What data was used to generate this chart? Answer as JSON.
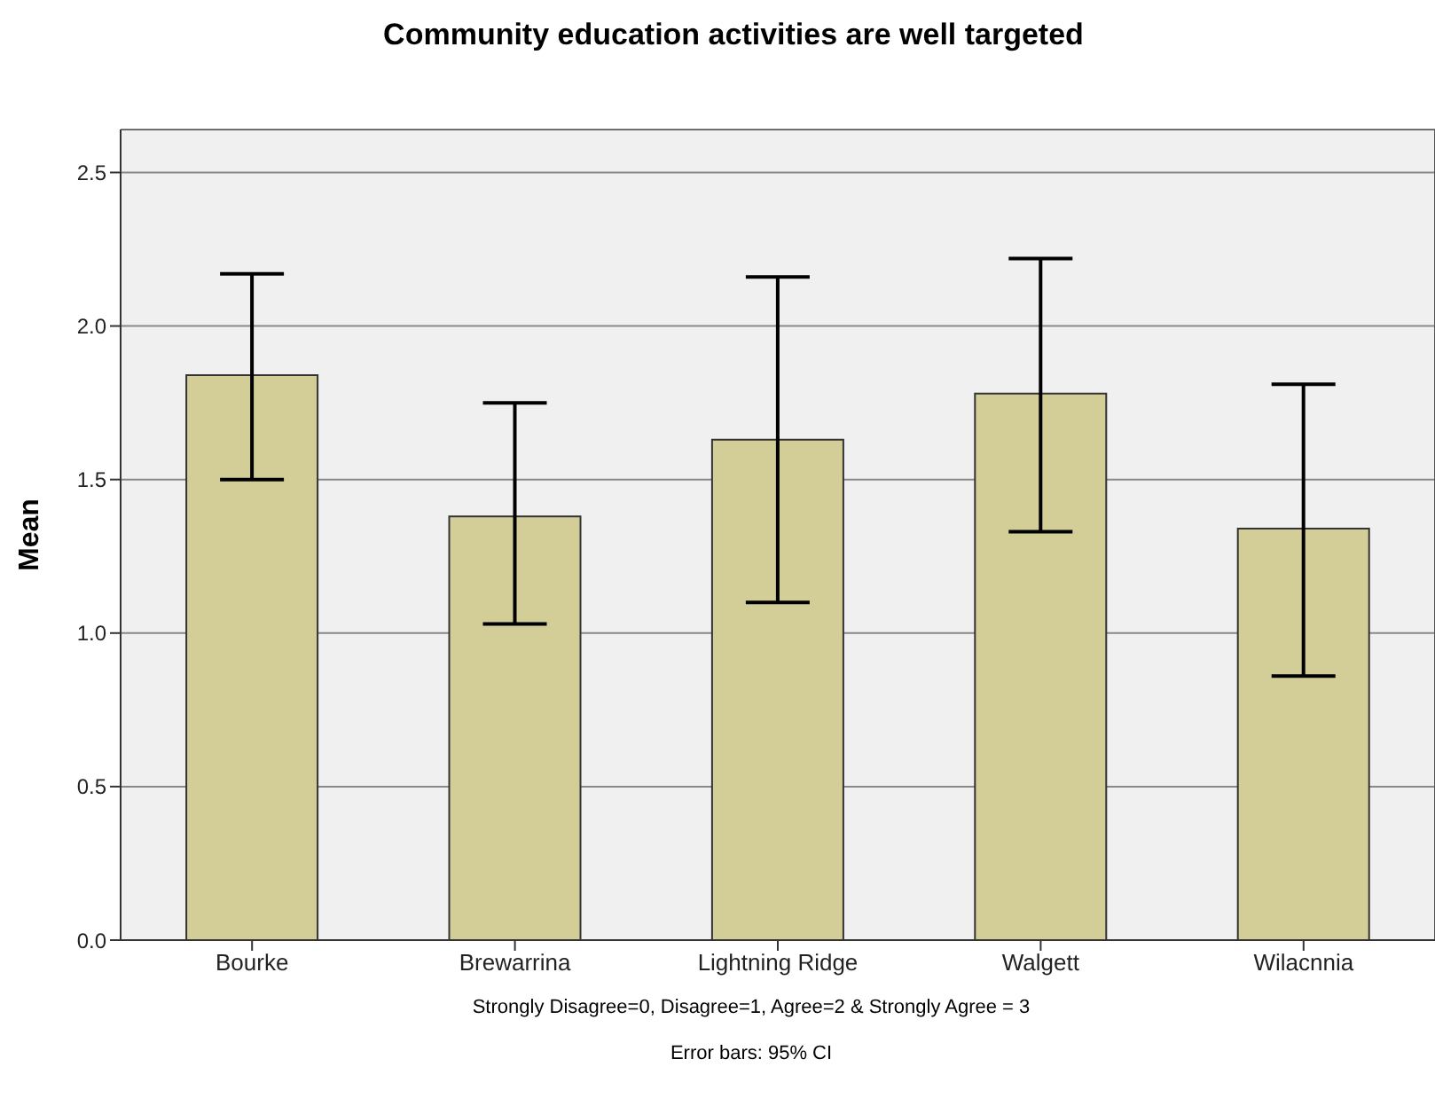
{
  "chart_data": {
    "type": "bar",
    "title": "Community education activities are well targeted",
    "ylabel": "Mean",
    "categories": [
      "Bourke",
      "Brewarrina",
      "Lightning Ridge",
      "Walgett",
      "Wilacnnia"
    ],
    "values": [
      1.84,
      1.38,
      1.63,
      1.78,
      1.34
    ],
    "errors": [
      [
        1.5,
        2.17
      ],
      [
        1.03,
        1.75
      ],
      [
        1.1,
        2.16
      ],
      [
        1.33,
        2.22
      ],
      [
        0.86,
        1.81
      ]
    ],
    "color": "#d3ce98",
    "ylim": [
      0,
      2.64
    ],
    "yticks": [
      {
        "value": 0,
        "label": "0.0"
      },
      {
        "value": 0.5,
        "label": "0.5"
      },
      {
        "value": 1,
        "label": "1.0"
      },
      {
        "value": 1.5,
        "label": "1.5"
      },
      {
        "value": 2,
        "label": "2.0"
      },
      {
        "value": 2.5,
        "label": "2.5"
      }
    ],
    "grid": "y",
    "annotations": [
      "Strongly Disagree=0, Disagree=1, Agree=2 & Strongly Agree = 3",
      "Error bars: 95% CI"
    ]
  }
}
